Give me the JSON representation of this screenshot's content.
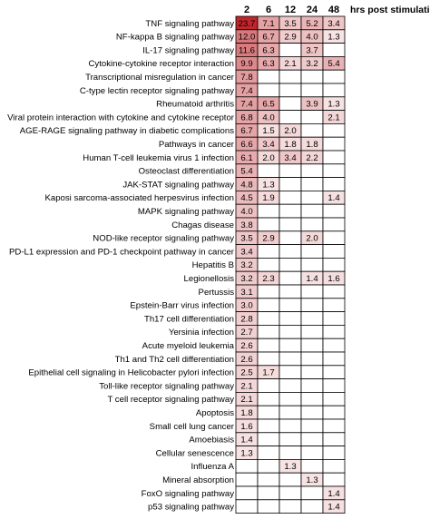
{
  "chart_data": {
    "type": "heatmap",
    "columns": [
      "2",
      "6",
      "12",
      "24",
      "48"
    ],
    "column_axis_label": "hrs post stimulation",
    "color_scale": {
      "low": "#ffffff",
      "high": "#c0262b",
      "max_value": 23.7
    },
    "rows": [
      {
        "label": "TNF signaling pathway",
        "values": [
          23.7,
          7.1,
          3.5,
          5.2,
          3.4
        ]
      },
      {
        "label": "NF-kappa B signaling pathway",
        "values": [
          12.0,
          6.7,
          2.9,
          4.0,
          1.3
        ]
      },
      {
        "label": "IL-17 signaling pathway",
        "values": [
          11.6,
          6.3,
          null,
          3.7,
          null
        ]
      },
      {
        "label": "Cytokine-cytokine receptor interaction",
        "values": [
          9.9,
          6.3,
          2.1,
          3.2,
          5.4
        ]
      },
      {
        "label": "Transcriptional misregulation in cancer",
        "values": [
          7.8,
          null,
          null,
          null,
          null
        ]
      },
      {
        "label": "C-type lectin receptor signaling pathway",
        "values": [
          7.4,
          null,
          null,
          null,
          null
        ]
      },
      {
        "label": "Rheumatoid arthritis",
        "values": [
          7.4,
          6.5,
          null,
          3.9,
          1.3
        ]
      },
      {
        "label": "Viral protein interaction with cytokine and cytokine receptor",
        "values": [
          6.8,
          4.0,
          null,
          null,
          2.1
        ]
      },
      {
        "label": "AGE-RAGE signaling pathway in diabetic complications",
        "values": [
          6.7,
          1.5,
          2.0,
          null,
          null
        ]
      },
      {
        "label": "Pathways in cancer",
        "values": [
          6.6,
          3.4,
          1.8,
          1.8,
          null
        ]
      },
      {
        "label": "Human T-cell leukemia virus 1 infection",
        "values": [
          6.1,
          2.0,
          3.4,
          2.2,
          null
        ]
      },
      {
        "label": "Osteoclast differentiation",
        "values": [
          5.4,
          null,
          null,
          null,
          null
        ]
      },
      {
        "label": "JAK-STAT signaling pathway",
        "values": [
          4.8,
          1.3,
          null,
          null,
          null
        ]
      },
      {
        "label": "Kaposi sarcoma-associated herpesvirus infection",
        "values": [
          4.5,
          1.9,
          null,
          null,
          1.4
        ]
      },
      {
        "label": "MAPK signaling pathway",
        "values": [
          4.0,
          null,
          null,
          null,
          null
        ]
      },
      {
        "label": "Chagas disease",
        "values": [
          3.8,
          null,
          null,
          null,
          null
        ]
      },
      {
        "label": "NOD-like receptor signaling pathway",
        "values": [
          3.5,
          2.9,
          null,
          2.0,
          null
        ]
      },
      {
        "label": "PD-L1 expression and PD-1 checkpoint pathway in cancer",
        "values": [
          3.4,
          null,
          null,
          null,
          null
        ]
      },
      {
        "label": "Hepatitis B",
        "values": [
          3.2,
          null,
          null,
          null,
          null
        ]
      },
      {
        "label": "Legionellosis",
        "values": [
          3.2,
          2.3,
          null,
          1.4,
          1.6
        ]
      },
      {
        "label": "Pertussis",
        "values": [
          3.1,
          null,
          null,
          null,
          null
        ]
      },
      {
        "label": "Epstein-Barr virus infection",
        "values": [
          3.0,
          null,
          null,
          null,
          null
        ]
      },
      {
        "label": "Th17 cell differentiation",
        "values": [
          2.8,
          null,
          null,
          null,
          null
        ]
      },
      {
        "label": "Yersinia infection",
        "values": [
          2.7,
          null,
          null,
          null,
          null
        ]
      },
      {
        "label": "Acute myeloid leukemia",
        "values": [
          2.6,
          null,
          null,
          null,
          null
        ]
      },
      {
        "label": "Th1 and Th2 cell differentiation",
        "values": [
          2.6,
          null,
          null,
          null,
          null
        ]
      },
      {
        "label": "Epithelial cell signaling in Helicobacter pylori infection",
        "values": [
          2.5,
          1.7,
          null,
          null,
          null
        ]
      },
      {
        "label": "Toll-like receptor signaling pathway",
        "values": [
          2.1,
          null,
          null,
          null,
          null
        ]
      },
      {
        "label": "T cell receptor signaling pathway",
        "values": [
          2.1,
          null,
          null,
          null,
          null
        ]
      },
      {
        "label": "Apoptosis",
        "values": [
          1.8,
          null,
          null,
          null,
          null
        ]
      },
      {
        "label": "Small cell lung cancer",
        "values": [
          1.6,
          null,
          null,
          null,
          null
        ]
      },
      {
        "label": "Amoebiasis",
        "values": [
          1.4,
          null,
          null,
          null,
          null
        ]
      },
      {
        "label": "Cellular senescence",
        "values": [
          1.3,
          null,
          null,
          null,
          null
        ]
      },
      {
        "label": "Influenza A",
        "values": [
          null,
          null,
          1.3,
          null,
          null
        ]
      },
      {
        "label": "Mineral absorption",
        "values": [
          null,
          null,
          null,
          1.3,
          null
        ]
      },
      {
        "label": "FoxO signaling pathway",
        "values": [
          null,
          null,
          null,
          null,
          1.4
        ]
      },
      {
        "label": "p53 signaling pathway",
        "values": [
          null,
          null,
          null,
          null,
          1.4
        ]
      }
    ]
  }
}
